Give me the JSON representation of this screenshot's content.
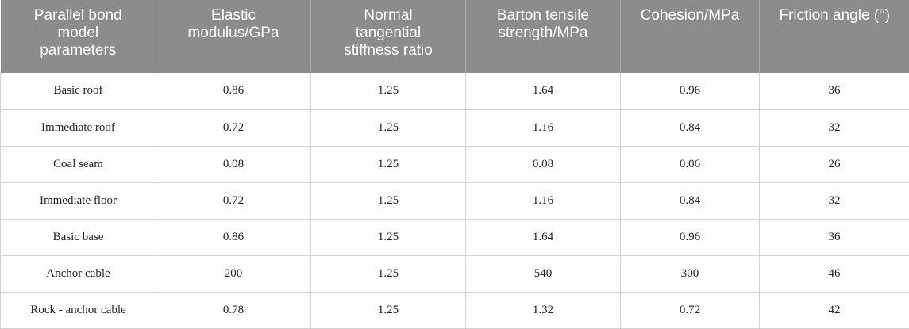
{
  "table": {
    "headers": [
      "Parallel bond\nmodel\nparameters",
      "Elastic\nmodulus/GPa",
      "Normal\ntangential\nstiffness ratio",
      "Barton tensile\nstrength/MPa",
      "Cohesion/MPa",
      "Friction angle (°)"
    ],
    "rows": [
      [
        "Basic roof",
        "0.86",
        "1.25",
        "1.64",
        "0.96",
        "36"
      ],
      [
        "Immediate roof",
        "0.72",
        "1.25",
        "1.16",
        "0.84",
        "32"
      ],
      [
        "Coal seam",
        "0.08",
        "1.25",
        "0.08",
        "0.06",
        "26"
      ],
      [
        "Immediate floor",
        "0.72",
        "1.25",
        "1.16",
        "0.84",
        "32"
      ],
      [
        "Basic base",
        "0.86",
        "1.25",
        "1.64",
        "0.96",
        "36"
      ],
      [
        "Anchor cable",
        "200",
        "1.25",
        "540",
        "300",
        "46"
      ],
      [
        "Rock - anchor cable",
        "0.78",
        "1.25",
        "1.32",
        "0.72",
        "42"
      ]
    ]
  },
  "colors": {
    "header_bg": "#8c8c8c",
    "header_text": "#ffffff",
    "grid": "#d4d4d4"
  }
}
